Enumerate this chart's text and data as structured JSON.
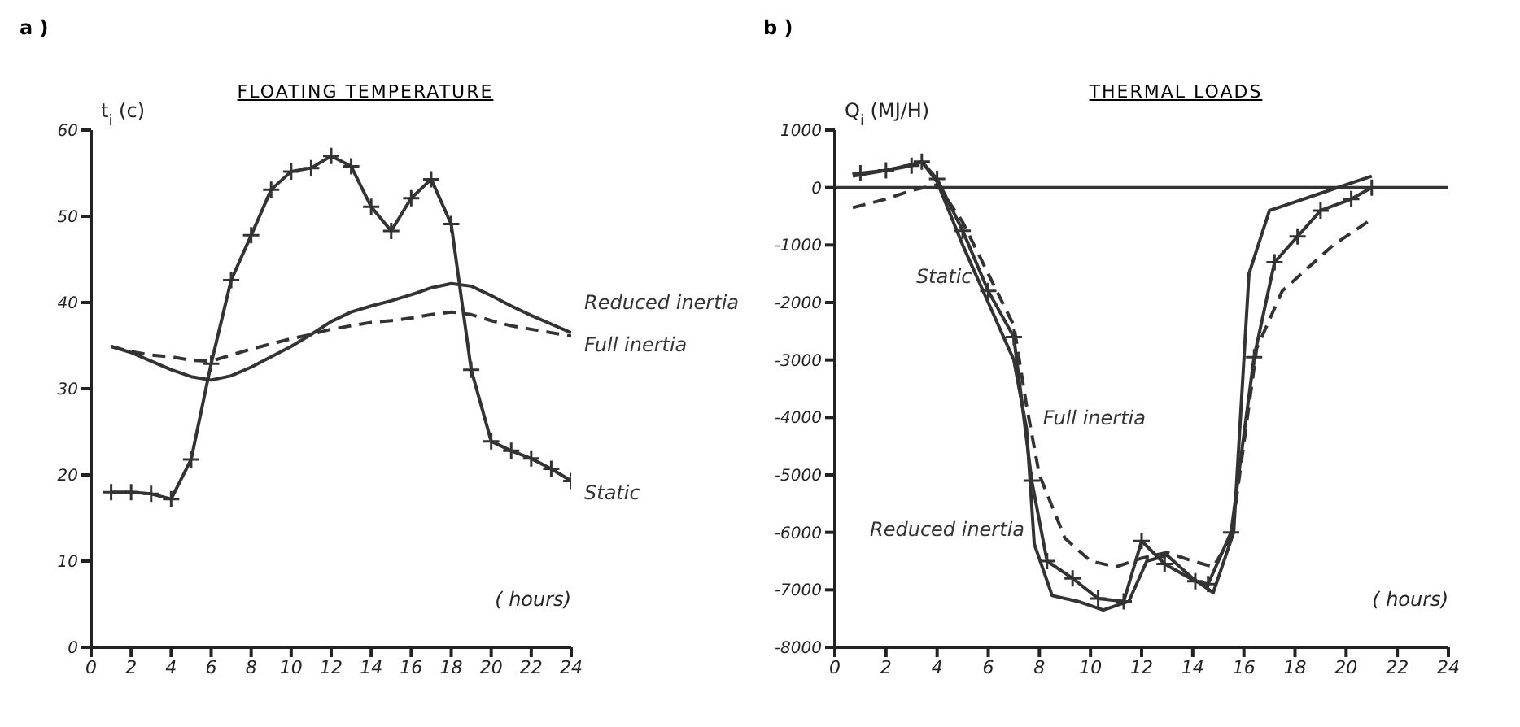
{
  "chart_data": [
    {
      "type": "line",
      "title": "FLOATING TEMPERATURE",
      "annotations": [
        "a )"
      ],
      "xlabel": "( hours)",
      "ylabel": "t$_{i}$ (c)",
      "xlim": [
        0,
        24
      ],
      "xticks": [
        0,
        2,
        4,
        6,
        8,
        10,
        12,
        14,
        16,
        18,
        20,
        22,
        24
      ],
      "ylim": [
        0,
        60
      ],
      "yticks": [
        0,
        10,
        20,
        30,
        40,
        50,
        60
      ],
      "x": [
        1,
        2,
        3,
        4,
        5,
        6,
        7,
        8,
        9,
        10,
        11,
        12,
        13,
        14,
        15,
        16,
        17,
        18,
        19,
        20,
        21,
        22,
        23,
        24
      ],
      "series": [
        {
          "name": "Reduced inertia",
          "color": "#333333",
          "marker": "none",
          "line_style": "solid",
          "values": [
            34.9,
            34.2,
            33.2,
            32.2,
            31.4,
            31.0,
            31.5,
            32.5,
            33.7,
            34.9,
            36.3,
            37.8,
            38.9,
            39.6,
            40.2,
            40.9,
            41.7,
            42.2,
            41.9,
            40.8,
            39.6,
            38.5,
            37.5,
            36.5
          ]
        },
        {
          "name": "Full inertia",
          "color": "#333333",
          "marker": "none",
          "line_style": "dashed",
          "values": [
            34.9,
            34.3,
            33.9,
            33.7,
            33.3,
            33.2,
            33.9,
            34.6,
            35.2,
            35.8,
            36.3,
            36.9,
            37.3,
            37.7,
            37.9,
            38.2,
            38.6,
            38.9,
            38.6,
            37.9,
            37.3,
            36.9,
            36.5,
            36.1
          ]
        },
        {
          "name": "Static",
          "color": "#333333",
          "marker": "cross",
          "line_style": "solid",
          "values": [
            18.0,
            18.0,
            17.8,
            17.2,
            21.8,
            32.9,
            42.6,
            47.8,
            53.1,
            55.2,
            55.6,
            57.0,
            55.8,
            51.1,
            48.3,
            52.1,
            54.3,
            49.1,
            32.2,
            23.9,
            22.8,
            21.9,
            20.7,
            19.3
          ]
        }
      ]
    },
    {
      "type": "line",
      "title": "THERMAL LOADS",
      "annotations": [
        "b )"
      ],
      "xlabel": "( hours)",
      "ylabel": "Q$_{i}$ (MJ/H)",
      "xlim": [
        0,
        24
      ],
      "xticks": [
        0,
        2,
        4,
        6,
        8,
        10,
        12,
        14,
        16,
        18,
        20,
        22,
        24
      ],
      "ylim": [
        -8000,
        1000
      ],
      "yticks": [
        -8000,
        -7000,
        -6000,
        -5000,
        -4000,
        -3000,
        -2000,
        -1000,
        0,
        1000
      ],
      "ref_lines": [
        {
          "axis": "y",
          "value": 0,
          "color": "#333333"
        }
      ],
      "series": [
        {
          "name": "Static",
          "color": "#333333",
          "marker": "cross",
          "line_style": "solid",
          "x": [
            1,
            2,
            3,
            3.4,
            4,
            5,
            6,
            7,
            7.7,
            8.3,
            9.3,
            10.3,
            11.3,
            12,
            12.9,
            14.1,
            14.6,
            15.5,
            16.4,
            17.2,
            18.1,
            19,
            20.2,
            21
          ],
          "values": [
            250,
            300,
            380,
            450,
            150,
            -750,
            -1800,
            -2600,
            -5100,
            -6500,
            -6800,
            -7150,
            -7200,
            -6150,
            -6550,
            -6850,
            -6900,
            -6000,
            -2950,
            -1300,
            -850,
            -400,
            -200,
            0
          ]
        },
        {
          "name": "Full inertia",
          "color": "#333333",
          "marker": "none",
          "line_style": "dashed",
          "x": [
            0.7,
            2,
            3,
            4,
            5,
            6,
            7,
            7.5,
            8,
            9,
            10,
            11,
            12,
            13,
            14,
            14.8,
            15.5,
            16.5,
            17.5,
            18.5,
            19.5,
            20.5,
            21
          ],
          "values": [
            -350,
            -200,
            -50,
            50,
            -600,
            -1500,
            -2400,
            -3800,
            -5000,
            -6100,
            -6500,
            -6600,
            -6450,
            -6350,
            -6500,
            -6600,
            -6100,
            -2800,
            -1800,
            -1400,
            -1000,
            -700,
            -550
          ]
        },
        {
          "name": "Reduced inertia",
          "color": "#333333",
          "marker": "none",
          "line_style": "solid",
          "x": [
            0.7,
            2,
            3,
            3.4,
            4,
            5,
            6,
            7,
            7.5,
            7.8,
            8.5,
            9.5,
            10.5,
            11.5,
            12.2,
            13,
            14,
            14.8,
            15.6,
            16.2,
            17,
            18,
            19,
            20,
            21
          ],
          "values": [
            200,
            300,
            400,
            450,
            100,
            -1000,
            -2000,
            -3000,
            -4200,
            -6200,
            -7100,
            -7200,
            -7350,
            -7200,
            -6500,
            -6400,
            -6800,
            -7050,
            -6000,
            -1500,
            -400,
            -250,
            -100,
            50,
            200
          ]
        }
      ]
    }
  ]
}
